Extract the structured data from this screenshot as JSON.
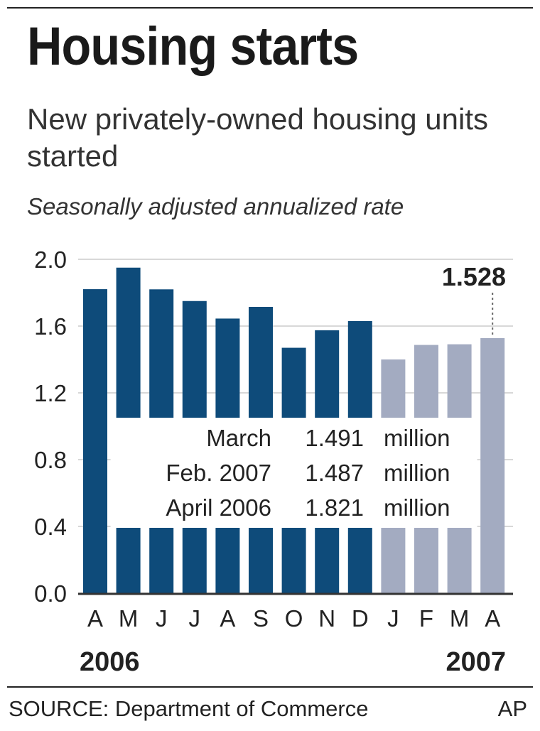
{
  "header": {
    "title": "Housing starts",
    "subtitle": "New privately-owned housing units started",
    "note": "Seasonally adjusted annualized rate"
  },
  "chart_data": {
    "type": "bar",
    "categories": [
      "A",
      "M",
      "J",
      "J",
      "A",
      "S",
      "O",
      "N",
      "D",
      "J",
      "F",
      "M",
      "A"
    ],
    "values": [
      1.821,
      1.95,
      1.82,
      1.75,
      1.645,
      1.715,
      1.47,
      1.575,
      1.63,
      1.4,
      1.487,
      1.491,
      1.528
    ],
    "year_groups": [
      {
        "label": "2006",
        "from": 0,
        "to": 8
      },
      {
        "label": "2007",
        "from": 9,
        "to": 12
      }
    ],
    "ylim": [
      0,
      2.0
    ],
    "yticks": [
      "0.0",
      "0.4",
      "0.8",
      "1.2",
      "1.6",
      "2.0"
    ],
    "grid": true,
    "highlight": {
      "index": 12,
      "label": "1.528"
    },
    "colors": {
      "2006": "#0e4b7a",
      "2007": "#a3abc1",
      "grid": "#d8d8d8",
      "axis": "#333333"
    },
    "summary_table": [
      {
        "period": "March",
        "value": "1.491",
        "unit": "million"
      },
      {
        "period": "Feb. 2007",
        "value": "1.487",
        "unit": "million"
      },
      {
        "period": "April 2006",
        "value": "1.821",
        "unit": "million"
      }
    ]
  },
  "footer": {
    "source": "SOURCE: Department of Commerce",
    "credit": "AP"
  }
}
